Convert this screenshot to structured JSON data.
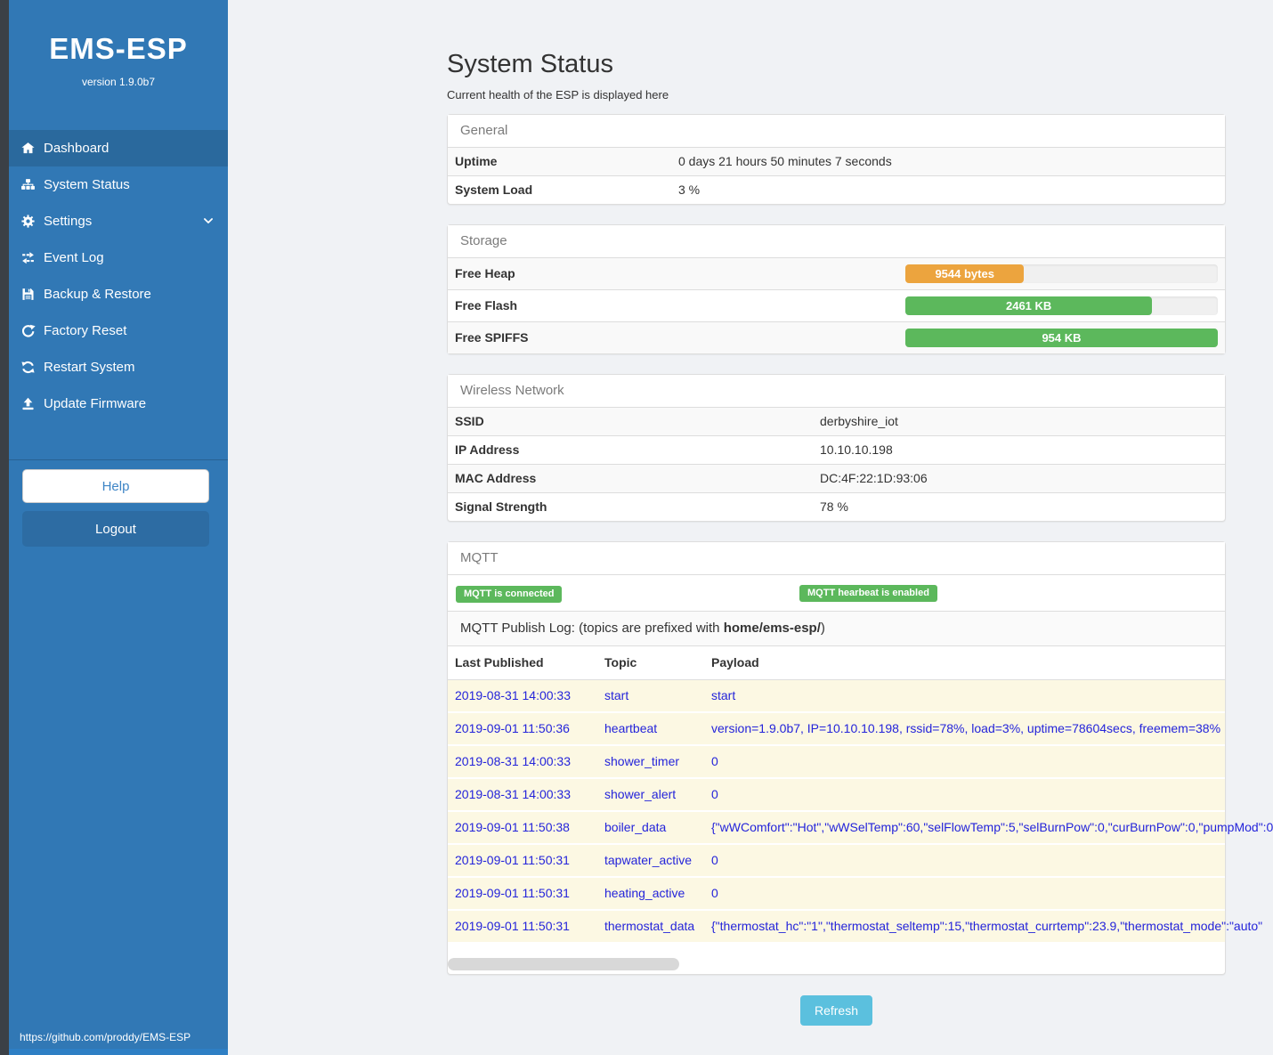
{
  "colors": {
    "sidebar_blue": "#3178b5",
    "sidebar_active": "#2a699d",
    "badge_green": "#5cb85c",
    "bar_orange": "#eca43e",
    "bar_green": "#5cb85c",
    "refresh_blue": "#5bc0de",
    "log_text_blue": "#2424da"
  },
  "sidebar": {
    "brand": "EMS-ESP",
    "version": "version 1.9.0b7",
    "items": [
      {
        "label": "Dashboard",
        "icon": "home-icon",
        "active": true
      },
      {
        "label": "System Status",
        "icon": "sitemap-icon",
        "active": false
      },
      {
        "label": "Settings",
        "icon": "gear-icon",
        "active": false,
        "chevron": "chevron-down-icon"
      },
      {
        "label": "Event Log",
        "icon": "exchange-icon",
        "active": false
      },
      {
        "label": "Backup & Restore",
        "icon": "save-icon",
        "active": false
      },
      {
        "label": "Factory Reset",
        "icon": "rotate-right-icon",
        "active": false
      },
      {
        "label": "Restart System",
        "icon": "sync-icon",
        "active": false
      },
      {
        "label": "Update Firmware",
        "icon": "upload-icon",
        "active": false
      }
    ],
    "help_label": "Help",
    "logout_label": "Logout",
    "footer_link": "https://github.com/proddy/EMS-ESP"
  },
  "page": {
    "title": "System Status",
    "subtitle": "Current health of the ESP is displayed here",
    "refresh_label": "Refresh"
  },
  "general": {
    "heading": "General",
    "rows": [
      {
        "label": "Uptime",
        "value": "0 days 21 hours 50 minutes 7 seconds"
      },
      {
        "label": "System Load",
        "value": "3 %"
      }
    ]
  },
  "storage": {
    "heading": "Storage",
    "rows": [
      {
        "label": "Free Heap",
        "value": "9544 bytes",
        "percent": 38,
        "color": "#eca43e"
      },
      {
        "label": "Free Flash",
        "value": "2461 KB",
        "percent": 79,
        "color": "#5cb85c"
      },
      {
        "label": "Free SPIFFS",
        "value": "954 KB",
        "percent": 100,
        "color": "#5cb85c"
      }
    ]
  },
  "wireless": {
    "heading": "Wireless Network",
    "rows": [
      {
        "label": "SSID",
        "value": "derbyshire_iot"
      },
      {
        "label": "IP Address",
        "value": "10.10.10.198"
      },
      {
        "label": "MAC Address",
        "value": "DC:4F:22:1D:93:06"
      },
      {
        "label": "Signal Strength",
        "value": "78 %"
      }
    ]
  },
  "mqtt": {
    "heading": "MQTT",
    "badge_connected": "MQTT is connected",
    "badge_heartbeat": "MQTT hearbeat is enabled",
    "publish_log_prefix": "MQTT Publish Log: (topics are prefixed with ",
    "publish_log_bold": "home/ems-esp/",
    "publish_log_suffix": ")",
    "columns": {
      "c1": "Last Published",
      "c2": "Topic",
      "c3": "Payload"
    },
    "rows": [
      {
        "time": "2019-08-31 14:00:33",
        "topic": "start",
        "payload": "start"
      },
      {
        "time": "2019-09-01 11:50:36",
        "topic": "heartbeat",
        "payload": "version=1.9.0b7, IP=10.10.10.198, rssid=78%, load=3%, uptime=78604secs, freemem=38%"
      },
      {
        "time": "2019-08-31 14:00:33",
        "topic": "shower_timer",
        "payload": "0"
      },
      {
        "time": "2019-08-31 14:00:33",
        "topic": "shower_alert",
        "payload": "0"
      },
      {
        "time": "2019-09-01 11:50:38",
        "topic": "boiler_data",
        "payload": "{\"wWComfort\":\"Hot\",\"wWSelTemp\":60,\"selFlowTemp\":5,\"selBurnPow\":0,\"curBurnPow\":0,\"pumpMod\":0"
      },
      {
        "time": "2019-09-01 11:50:31",
        "topic": "tapwater_active",
        "payload": "0"
      },
      {
        "time": "2019-09-01 11:50:31",
        "topic": "heating_active",
        "payload": "0"
      },
      {
        "time": "2019-09-01 11:50:31",
        "topic": "thermostat_data",
        "payload": "{\"thermostat_hc\":\"1\",\"thermostat_seltemp\":15,\"thermostat_currtemp\":23.9,\"thermostat_mode\":\"auto\""
      }
    ]
  }
}
